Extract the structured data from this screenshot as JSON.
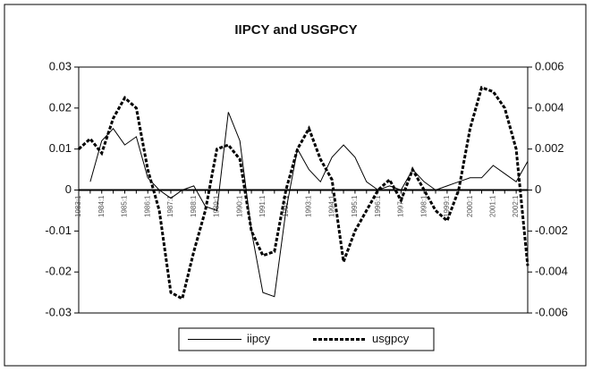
{
  "chart_data": {
    "type": "line",
    "title": "IIPCY and USGPCY",
    "categories": [
      "1983:1",
      null,
      "1984:1",
      null,
      "1985:1",
      null,
      "1986:1",
      null,
      "1987:1",
      null,
      "1988:1",
      null,
      "1989:1",
      null,
      "1990:1",
      null,
      "1991:1",
      null,
      "1992:1",
      null,
      "1993:1",
      null,
      "1994:1",
      null,
      "1995:1",
      null,
      "1996:1",
      null,
      "1997:1",
      null,
      "1998:1",
      null,
      "1999:1",
      null,
      "2000:1",
      null,
      "2001:1",
      null,
      "2002:1",
      null
    ],
    "series": [
      {
        "name": "iipcy",
        "color": "#000000",
        "dash": "solid",
        "values": [
          null,
          0.002,
          0.012,
          0.015,
          0.011,
          0.013,
          0.003,
          0.0,
          -0.002,
          0.0,
          0.001,
          -0.004,
          -0.005,
          0.019,
          0.012,
          -0.01,
          -0.025,
          -0.026,
          -0.005,
          0.01,
          0.005,
          0.002,
          0.008,
          0.011,
          0.008,
          0.002,
          0.0,
          0.001,
          0.0,
          0.005,
          0.002,
          0.0,
          0.001,
          0.002,
          0.003,
          0.003,
          0.006,
          0.004,
          0.002,
          0.007
        ]
      },
      {
        "name": "usgpcy",
        "color": "#000000",
        "dash": "dashed",
        "axis": "y2",
        "values": [
          0.002,
          0.0025,
          0.0018,
          0.0035,
          0.0045,
          0.004,
          0.001,
          -0.001,
          -0.005,
          -0.0053,
          -0.003,
          -0.001,
          0.002,
          0.0022,
          0.0015,
          -0.002,
          -0.0032,
          -0.003,
          0.0,
          0.002,
          0.003,
          0.0015,
          0.0005,
          -0.0035,
          -0.002,
          -0.001,
          0.0,
          0.0005,
          -0.0005,
          0.001,
          0.0,
          -0.001,
          -0.0015,
          0.0,
          0.003,
          0.005,
          0.0048,
          0.004,
          0.002,
          -0.0037
        ]
      }
    ],
    "ylim": [
      -0.03,
      0.03
    ],
    "yticks": [
      -0.03,
      -0.02,
      -0.01,
      0,
      0.01,
      0.02,
      0.03
    ],
    "y2lim": [
      -0.006,
      0.006
    ],
    "y2ticks": [
      -0.006,
      -0.004,
      -0.002,
      0,
      0.002,
      0.004,
      0.006
    ],
    "legend": "bottom"
  }
}
